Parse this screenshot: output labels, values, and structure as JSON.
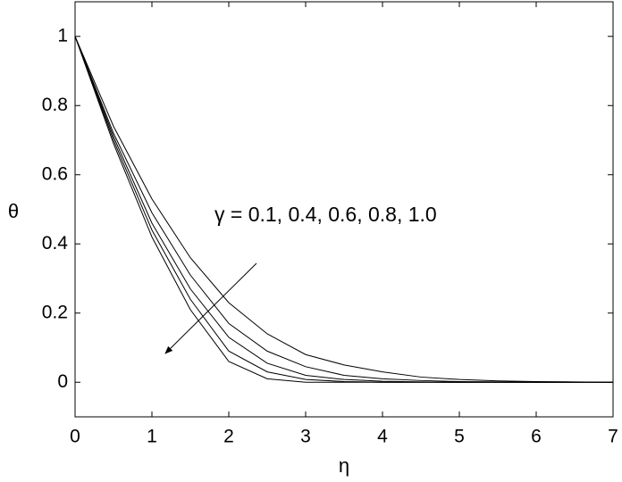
{
  "chart_data": {
    "type": "line",
    "xlabel": "η",
    "ylabel": "θ",
    "annotation": "γ = 0.1, 0.4, 0.6, 0.8, 1.0",
    "x": [
      0,
      0.5,
      1,
      1.5,
      2,
      2.5,
      3,
      3.5,
      4,
      4.5,
      5,
      5.5,
      6,
      6.5,
      7
    ],
    "series": [
      {
        "color": "#000000",
        "values": [
          1,
          0.74,
          0.53,
          0.36,
          0.23,
          0.14,
          0.08,
          0.05,
          0.03,
          0.015,
          0.008,
          0.004,
          0.002,
          0.001,
          0
        ]
      },
      {
        "color": "#000000",
        "values": [
          1,
          0.72,
          0.49,
          0.31,
          0.17,
          0.09,
          0.045,
          0.02,
          0.01,
          0.005,
          0.002,
          0.001,
          0,
          0,
          0
        ]
      },
      {
        "color": "#000000",
        "values": [
          1,
          0.71,
          0.46,
          0.27,
          0.13,
          0.055,
          0.02,
          0.008,
          0.003,
          0.001,
          0,
          0,
          0,
          0,
          0
        ]
      },
      {
        "color": "#000000",
        "values": [
          1,
          0.7,
          0.44,
          0.24,
          0.09,
          0.03,
          0.008,
          0.002,
          0,
          0,
          0,
          0,
          0,
          0,
          0
        ]
      },
      {
        "color": "#000000",
        "values": [
          1,
          0.69,
          0.42,
          0.21,
          0.06,
          0.01,
          0,
          0,
          0,
          0,
          0,
          0,
          0,
          0,
          0
        ]
      }
    ],
    "xlim": [
      0,
      7
    ],
    "xticks": [
      0,
      1,
      2,
      3,
      4,
      5,
      6,
      7
    ],
    "ylim": [
      -0.1,
      1.1
    ],
    "yticks": [
      0,
      0.2,
      0.4,
      0.6,
      0.8,
      1
    ],
    "grid": false
  }
}
